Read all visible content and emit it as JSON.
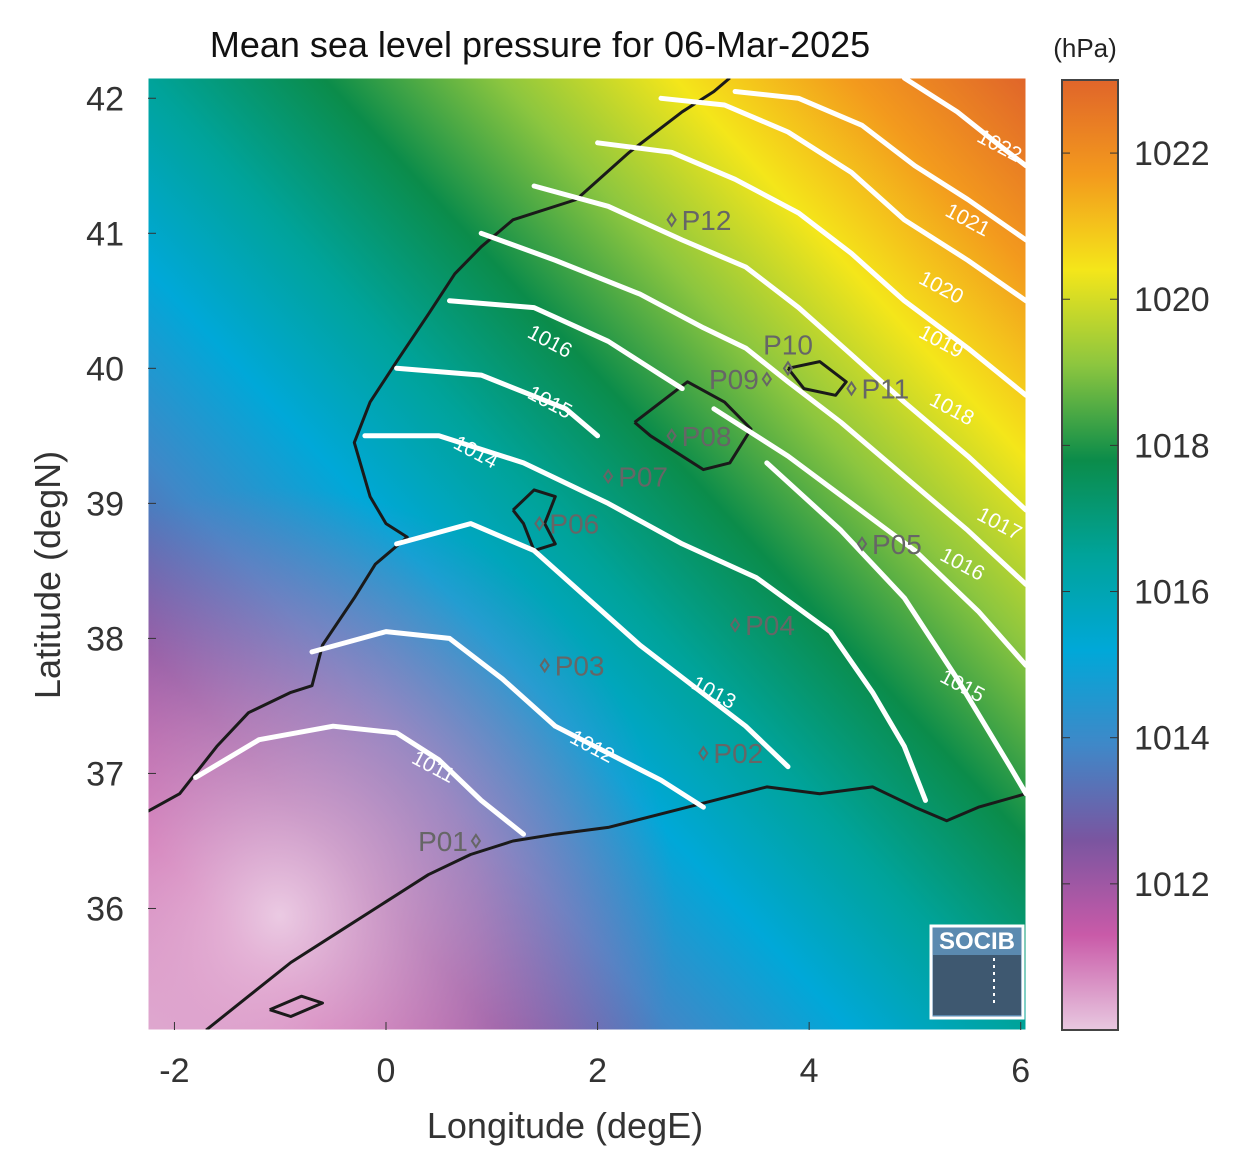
{
  "title": "Mean sea level pressure for 06-Mar-2025",
  "xlabel": "Longitude (degE)",
  "ylabel": "Latitude (degN)",
  "colorbar": {
    "unit": "(hPa)",
    "ticks": [
      "1012",
      "1014",
      "1016",
      "1018",
      "1020",
      "1022"
    ],
    "tick_values": [
      1012,
      1014,
      1016,
      1018,
      1020,
      1022
    ],
    "range": [
      1010.0,
      1023.0
    ],
    "colors": [
      "#e8c8e0",
      "#c95aa8",
      "#7a55a0",
      "#3f88c8",
      "#00a8d8",
      "#00a39a",
      "#0b8c4a",
      "#8cc63f",
      "#f4e61a",
      "#f39a1d",
      "#e0652a"
    ]
  },
  "xaxis": {
    "range": [
      -2.25,
      6.05
    ],
    "ticks": [
      "-2",
      "0",
      "2",
      "4",
      "6"
    ],
    "tick_values": [
      -2,
      0,
      2,
      4,
      6
    ]
  },
  "yaxis": {
    "range": [
      35.1,
      42.15
    ],
    "ticks": [
      "36",
      "37",
      "38",
      "39",
      "40",
      "41",
      "42"
    ],
    "tick_values": [
      36,
      37,
      38,
      39,
      40,
      41,
      42
    ]
  },
  "contours": [
    {
      "level": "1011",
      "path": [
        [
          -1.8,
          36.97
        ],
        [
          -1.2,
          37.25
        ],
        [
          -0.5,
          37.35
        ],
        [
          0.1,
          37.3
        ],
        [
          0.5,
          37.1
        ],
        [
          0.9,
          36.8
        ],
        [
          1.3,
          36.55
        ]
      ],
      "label_at": [
        0.45,
        37.05
      ]
    },
    {
      "level": "1012",
      "path": [
        [
          -0.7,
          37.9
        ],
        [
          0.0,
          38.05
        ],
        [
          0.6,
          38.0
        ],
        [
          1.1,
          37.7
        ],
        [
          1.6,
          37.35
        ],
        [
          2.1,
          37.15
        ],
        [
          2.6,
          36.95
        ],
        [
          3.0,
          36.75
        ]
      ],
      "label_at": [
        1.95,
        37.2
      ]
    },
    {
      "level": "1013",
      "path": [
        [
          0.1,
          38.7
        ],
        [
          0.8,
          38.85
        ],
        [
          1.4,
          38.65
        ],
        [
          1.9,
          38.3
        ],
        [
          2.4,
          37.95
        ],
        [
          2.9,
          37.65
        ],
        [
          3.4,
          37.35
        ],
        [
          3.8,
          37.05
        ]
      ],
      "label_at": [
        3.1,
        37.6
      ]
    },
    {
      "level": "1014",
      "path": [
        [
          -0.2,
          39.5
        ],
        [
          0.5,
          39.5
        ],
        [
          1.3,
          39.3
        ],
        [
          2.1,
          39.0
        ],
        [
          2.8,
          38.7
        ],
        [
          3.5,
          38.45
        ],
        [
          4.2,
          38.05
        ],
        [
          4.6,
          37.6
        ],
        [
          4.9,
          37.2
        ],
        [
          5.1,
          36.8
        ]
      ],
      "label_at": [
        0.85,
        39.38
      ]
    },
    {
      "level": "1015",
      "path": [
        [
          0.1,
          40.0
        ],
        [
          0.9,
          39.95
        ],
        [
          1.7,
          39.7
        ],
        [
          2.0,
          39.5
        ]
      ],
      "label_at": [
        1.55,
        39.75
      ]
    },
    {
      "level": "1015",
      "path": [
        [
          3.6,
          39.3
        ],
        [
          4.3,
          38.8
        ],
        [
          4.9,
          38.3
        ],
        [
          5.4,
          37.7
        ],
        [
          5.9,
          37.05
        ],
        [
          6.05,
          36.85
        ]
      ],
      "label_at": [
        5.45,
        37.65
      ]
    },
    {
      "level": "1016",
      "path": [
        [
          0.6,
          40.5
        ],
        [
          1.4,
          40.45
        ],
        [
          2.1,
          40.2
        ],
        [
          2.6,
          39.95
        ],
        [
          2.8,
          39.85
        ]
      ],
      "label_at": [
        1.55,
        40.2
      ]
    },
    {
      "level": "1016",
      "path": [
        [
          3.1,
          39.7
        ],
        [
          3.8,
          39.35
        ],
        [
          4.4,
          39.0
        ],
        [
          5.0,
          38.65
        ],
        [
          5.6,
          38.2
        ],
        [
          6.05,
          37.8
        ]
      ],
      "label_at": [
        5.45,
        38.55
      ]
    },
    {
      "level": "1017",
      "path": [
        [
          0.9,
          41.0
        ],
        [
          1.6,
          40.8
        ],
        [
          2.4,
          40.55
        ],
        [
          3.0,
          40.3
        ],
        [
          3.4,
          40.15
        ],
        [
          3.8,
          39.9
        ],
        [
          4.3,
          39.6
        ],
        [
          4.9,
          39.2
        ],
        [
          5.5,
          38.8
        ],
        [
          6.05,
          38.4
        ]
      ],
      "label_at": [
        5.8,
        38.85
      ]
    },
    {
      "level": "1018",
      "path": [
        [
          1.4,
          41.35
        ],
        [
          2.1,
          41.2
        ],
        [
          2.8,
          40.95
        ],
        [
          3.4,
          40.75
        ],
        [
          3.9,
          40.45
        ],
        [
          4.4,
          40.1
        ],
        [
          4.9,
          39.75
        ],
        [
          5.5,
          39.35
        ],
        [
          6.05,
          38.95
        ]
      ],
      "label_at": [
        5.35,
        39.7
      ]
    },
    {
      "level": "1019",
      "path": [
        [
          2.0,
          41.67
        ],
        [
          2.7,
          41.6
        ],
        [
          3.3,
          41.4
        ],
        [
          3.9,
          41.15
        ],
        [
          4.4,
          40.85
        ],
        [
          4.9,
          40.5
        ],
        [
          5.5,
          40.15
        ],
        [
          6.05,
          39.8
        ]
      ],
      "label_at": [
        5.25,
        40.2
      ]
    },
    {
      "level": "1020",
      "path": [
        [
          2.6,
          42.0
        ],
        [
          3.2,
          41.95
        ],
        [
          3.8,
          41.75
        ],
        [
          4.4,
          41.45
        ],
        [
          4.9,
          41.1
        ],
        [
          5.5,
          40.8
        ],
        [
          6.05,
          40.5
        ]
      ],
      "label_at": [
        5.25,
        40.6
      ]
    },
    {
      "level": "1021",
      "path": [
        [
          3.3,
          42.05
        ],
        [
          3.9,
          42.0
        ],
        [
          4.5,
          41.8
        ],
        [
          5.0,
          41.5
        ],
        [
          5.5,
          41.25
        ],
        [
          6.05,
          40.95
        ]
      ],
      "label_at": [
        5.5,
        41.1
      ]
    },
    {
      "level": "1022",
      "path": [
        [
          4.9,
          42.15
        ],
        [
          5.4,
          41.9
        ],
        [
          5.8,
          41.65
        ],
        [
          6.05,
          41.5
        ]
      ],
      "label_at": [
        5.8,
        41.65
      ]
    }
  ],
  "coastlines": [
    [
      [
        -2.25,
        36.72
      ],
      [
        -1.95,
        36.85
      ],
      [
        -1.6,
        37.2
      ],
      [
        -1.3,
        37.45
      ],
      [
        -0.9,
        37.6
      ],
      [
        -0.7,
        37.65
      ],
      [
        -0.6,
        37.95
      ],
      [
        -0.3,
        38.3
      ],
      [
        -0.1,
        38.55
      ],
      [
        0.2,
        38.75
      ],
      [
        0.0,
        38.85
      ],
      [
        -0.15,
        39.05
      ],
      [
        -0.3,
        39.45
      ],
      [
        -0.15,
        39.75
      ],
      [
        0.1,
        40.05
      ],
      [
        0.4,
        40.4
      ],
      [
        0.65,
        40.7
      ],
      [
        0.9,
        40.9
      ],
      [
        1.2,
        41.1
      ],
      [
        1.8,
        41.25
      ],
      [
        2.3,
        41.6
      ],
      [
        2.8,
        41.9
      ],
      [
        3.1,
        42.05
      ],
      [
        3.25,
        42.15
      ]
    ],
    [
      [
        -1.7,
        35.1
      ],
      [
        -1.3,
        35.35
      ],
      [
        -0.9,
        35.6
      ],
      [
        -0.4,
        35.85
      ],
      [
        0.0,
        36.05
      ],
      [
        0.4,
        36.25
      ],
      [
        0.8,
        36.4
      ],
      [
        1.2,
        36.5
      ],
      [
        1.6,
        36.55
      ],
      [
        2.1,
        36.6
      ],
      [
        2.6,
        36.7
      ],
      [
        3.1,
        36.8
      ],
      [
        3.6,
        36.9
      ],
      [
        4.1,
        36.85
      ],
      [
        4.6,
        36.9
      ],
      [
        5.0,
        36.75
      ],
      [
        5.3,
        36.65
      ],
      [
        5.6,
        36.75
      ],
      [
        6.05,
        36.85
      ]
    ],
    [
      [
        2.35,
        39.6
      ],
      [
        2.6,
        39.75
      ],
      [
        2.85,
        39.9
      ],
      [
        3.2,
        39.75
      ],
      [
        3.45,
        39.55
      ],
      [
        3.25,
        39.3
      ],
      [
        3.0,
        39.25
      ],
      [
        2.7,
        39.4
      ],
      [
        2.5,
        39.5
      ],
      [
        2.35,
        39.6
      ]
    ],
    [
      [
        3.8,
        40.0
      ],
      [
        4.1,
        40.05
      ],
      [
        4.35,
        39.9
      ],
      [
        4.25,
        39.8
      ],
      [
        3.95,
        39.85
      ],
      [
        3.8,
        40.0
      ]
    ],
    [
      [
        1.2,
        38.95
      ],
      [
        1.4,
        39.1
      ],
      [
        1.6,
        39.05
      ],
      [
        1.5,
        38.85
      ],
      [
        1.6,
        38.7
      ],
      [
        1.4,
        38.65
      ],
      [
        1.3,
        38.85
      ],
      [
        1.2,
        38.95
      ]
    ],
    [
      [
        -1.1,
        35.25
      ],
      [
        -0.8,
        35.35
      ],
      [
        -0.6,
        35.3
      ],
      [
        -0.9,
        35.2
      ],
      [
        -1.1,
        35.25
      ]
    ]
  ],
  "stations": [
    {
      "name": "P01",
      "lon": 0.85,
      "lat": 36.5,
      "label_side": "left"
    },
    {
      "name": "P02",
      "lon": 3.0,
      "lat": 37.15,
      "label_side": "right"
    },
    {
      "name": "P03",
      "lon": 1.5,
      "lat": 37.8,
      "label_side": "right"
    },
    {
      "name": "P04",
      "lon": 3.3,
      "lat": 38.1,
      "label_side": "right"
    },
    {
      "name": "P05",
      "lon": 4.5,
      "lat": 38.7,
      "label_side": "right"
    },
    {
      "name": "P06",
      "lon": 1.45,
      "lat": 38.85,
      "label_side": "right"
    },
    {
      "name": "P07",
      "lon": 2.1,
      "lat": 39.2,
      "label_side": "right"
    },
    {
      "name": "P08",
      "lon": 2.7,
      "lat": 39.5,
      "label_side": "right"
    },
    {
      "name": "P09",
      "lon": 3.6,
      "lat": 39.92,
      "label_side": "left"
    },
    {
      "name": "P10",
      "lon": 3.8,
      "lat": 40.0,
      "label_side": "above"
    },
    {
      "name": "P11",
      "lon": 4.4,
      "lat": 39.85,
      "label_side": "right"
    },
    {
      "name": "P12",
      "lon": 2.7,
      "lat": 41.1,
      "label_side": "right"
    }
  ],
  "logo": {
    "text": "SOCIB"
  }
}
